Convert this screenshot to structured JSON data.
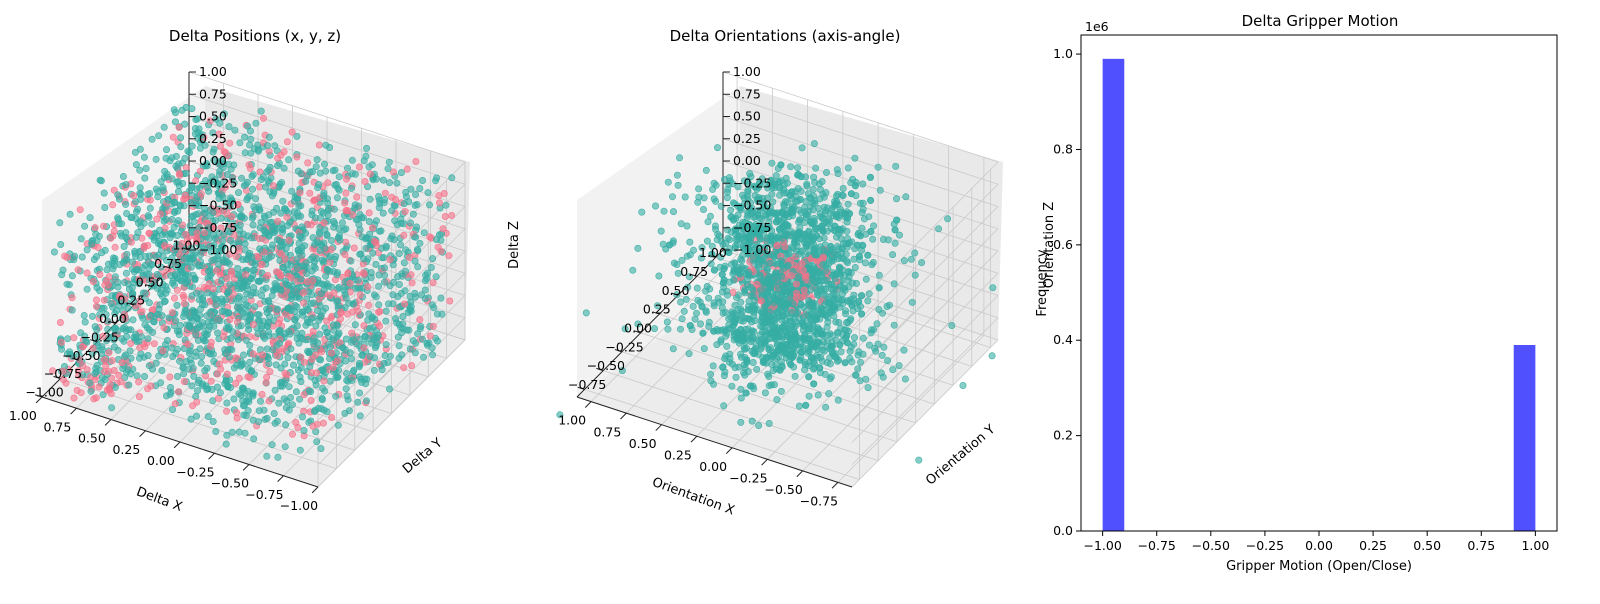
{
  "colors": {
    "teal": "#36ada4",
    "pink": "#f77189",
    "blue": "#4c4cff"
  },
  "chart_data": [
    {
      "type": "scatter",
      "projection": "3d",
      "title": "Delta Positions (x, y, z)",
      "xlabel": "Delta X",
      "ylabel": "Delta Y",
      "zlabel": "Delta Z",
      "xlim": [
        -1.0,
        1.0
      ],
      "ylim": [
        -1.0,
        1.0
      ],
      "zlim": [
        -1.0,
        1.0
      ],
      "xticks": [
        "−1.00",
        "−0.75",
        "−0.50",
        "−0.25",
        "0.00",
        "0.25",
        "0.50",
        "0.75",
        "1.00"
      ],
      "yticks": [
        "−1.00",
        "−0.75",
        "−0.50",
        "−0.25",
        "0.00",
        "0.25",
        "0.50",
        "0.75",
        "1.00"
      ],
      "zticks": [
        "−1.00",
        "−0.75",
        "−0.50",
        "−0.25",
        "0.00",
        "0.25",
        "0.50",
        "0.75",
        "1.00"
      ],
      "series": [
        {
          "color": "#36ada4",
          "distribution": "dense cloud filling the cube [-1,1]^3"
        },
        {
          "color": "#f77189",
          "distribution": "sparser points spread through the same cube"
        }
      ],
      "grid": true
    },
    {
      "type": "scatter",
      "projection": "3d",
      "title": "Delta Orientations (axis-angle)",
      "xlabel": "Orientation X",
      "ylabel": "Orientation Y",
      "zlabel": "Orientation Z",
      "xlim": [
        -0.85,
        1.1
      ],
      "ylim": [
        -0.85,
        1.1
      ],
      "zlim": [
        -1.0,
        1.0
      ],
      "xticks": [
        "−0.75",
        "−0.50",
        "−0.25",
        "0.00",
        "0.25",
        "0.50",
        "0.75",
        "1.00"
      ],
      "yticks": [
        "−0.75",
        "−0.50",
        "−0.25",
        "0.00",
        "0.25",
        "0.50",
        "0.75",
        "1.00"
      ],
      "zticks": [
        "−1.00",
        "−0.75",
        "−0.50",
        "−0.25",
        "0.00",
        "0.25",
        "0.50",
        "0.75",
        "1.00"
      ],
      "series": [
        {
          "color": "#36ada4",
          "distribution": "hourglass-shaped cloud centered near origin"
        },
        {
          "color": "#f77189",
          "distribution": "cluster at the waist of the hourglass"
        }
      ],
      "grid": true
    },
    {
      "type": "bar",
      "subtype": "histogram",
      "title": "Delta Gripper Motion",
      "xlabel": "Gripper Motion (Open/Close)",
      "ylabel": "Frequency",
      "offset_label": "1e6",
      "xlim": [
        -1.1,
        1.1
      ],
      "ylim": [
        0,
        1.04
      ],
      "xticks": [
        "−1.00",
        "−0.75",
        "−0.50",
        "−0.25",
        "0.00",
        "0.25",
        "0.50",
        "0.75",
        "1.00"
      ],
      "xtick_values": [
        -1.0,
        -0.75,
        -0.5,
        -0.25,
        0.0,
        0.25,
        0.5,
        0.75,
        1.0
      ],
      "yticks": [
        "0.0",
        "0.2",
        "0.4",
        "0.6",
        "0.8",
        "1.0"
      ],
      "ytick_values": [
        0.0,
        0.2,
        0.4,
        0.6,
        0.8,
        1.0
      ],
      "bins": [
        {
          "x0": -1.0,
          "x1": -0.9,
          "value": 0.99
        },
        {
          "x0": 0.9,
          "x1": 1.0,
          "value": 0.39
        }
      ],
      "bar_color": "#4c4cff"
    }
  ]
}
